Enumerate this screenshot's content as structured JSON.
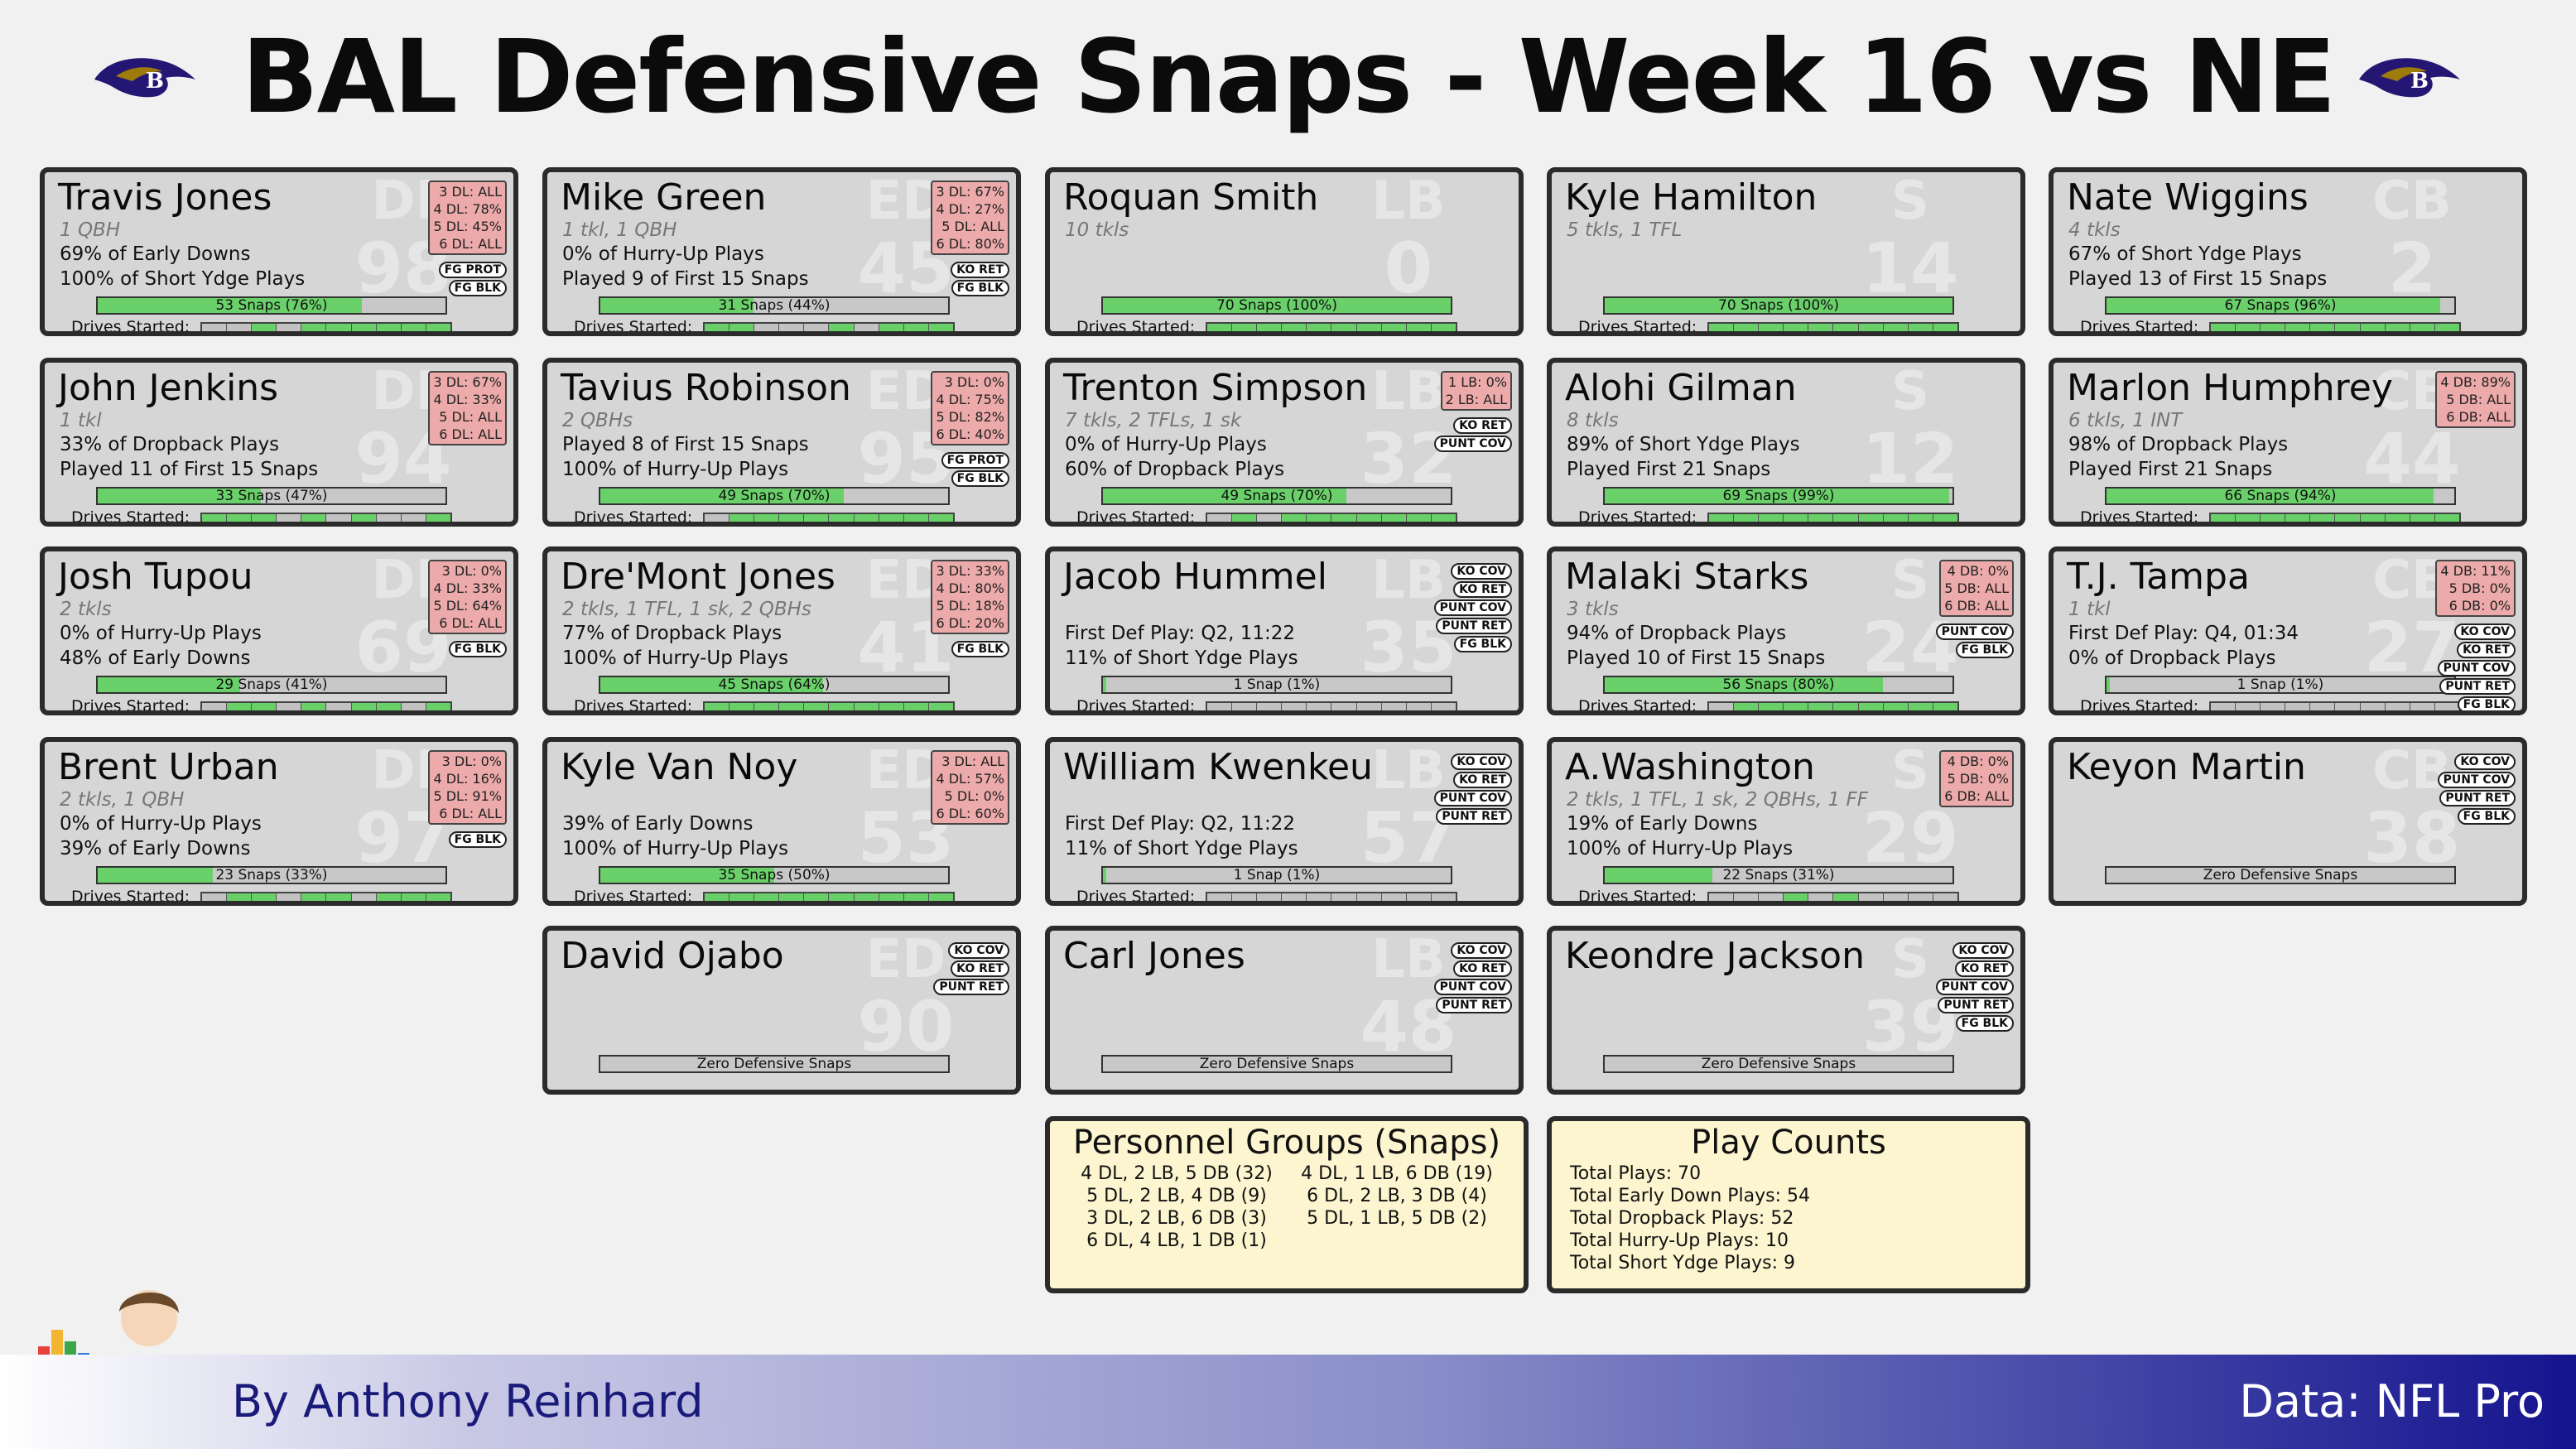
{
  "title": "BAL Defensive Snaps - Week 16 vs NE",
  "footer": {
    "byline": "By Anthony Reinhard",
    "source": "Data: NFL Pro"
  },
  "colors": {
    "card_bg": "#d6d6d6",
    "snap_fill": "#6ad16a",
    "personnel_bg": "#ecaaaa",
    "info_bg": "#fcf5cf",
    "footer_dark": "#15148f"
  },
  "players": [
    {
      "name": "Travis Jones",
      "pos": "DI",
      "num": "98",
      "stat": "1 QBH",
      "notes": [
        "69% of Early Downs",
        "100% of Short Ydge Plays"
      ],
      "snaps": "53 Snaps (76%)",
      "snap_pct": 76,
      "drives": [
        0,
        0,
        1,
        0,
        1,
        1,
        1,
        1,
        1,
        1
      ],
      "personnel": [
        "3 DL: ALL",
        "4 DL: 78%",
        "5 DL: 45%",
        "6 DL: ALL"
      ],
      "tags": [
        "FG PROT",
        "FG BLK"
      ]
    },
    {
      "name": "Mike Green",
      "pos": "ED",
      "num": "45",
      "stat": "1 tkl, 1 QBH",
      "notes": [
        "0% of Hurry-Up Plays",
        "Played 9 of First 15 Snaps"
      ],
      "snaps": "31 Snaps (44%)",
      "snap_pct": 44,
      "drives": [
        1,
        1,
        0,
        0,
        0,
        1,
        0,
        1,
        1,
        1
      ],
      "personnel": [
        "3 DL: 67%",
        "4 DL: 27%",
        "5 DL: ALL",
        "6 DL: 80%"
      ],
      "tags": [
        "KO RET",
        "FG BLK"
      ]
    },
    {
      "name": "Roquan Smith",
      "pos": "LB",
      "num": "0",
      "stat": "10 tkls",
      "notes": [
        "",
        ""
      ],
      "snaps": "70 Snaps (100%)",
      "snap_pct": 100,
      "drives": [
        1,
        1,
        1,
        1,
        1,
        1,
        1,
        1,
        1,
        1
      ],
      "personnel": [],
      "tags": []
    },
    {
      "name": "Kyle Hamilton",
      "pos": "S",
      "num": "14",
      "stat": "5 tkls, 1 TFL",
      "notes": [
        "",
        ""
      ],
      "snaps": "70 Snaps (100%)",
      "snap_pct": 100,
      "drives": [
        1,
        1,
        1,
        1,
        1,
        1,
        1,
        1,
        1,
        1
      ],
      "personnel": [],
      "tags": []
    },
    {
      "name": "Nate Wiggins",
      "pos": "CB",
      "num": "2",
      "stat": "4 tkls",
      "notes": [
        "67% of Short Ydge Plays",
        "Played 13 of First 15 Snaps"
      ],
      "snaps": "67 Snaps (96%)",
      "snap_pct": 96,
      "drives": [
        1,
        1,
        1,
        1,
        1,
        1,
        1,
        1,
        1,
        1
      ],
      "personnel": [],
      "tags": []
    },
    {
      "name": "John Jenkins",
      "pos": "DI",
      "num": "94",
      "stat": "1 tkl",
      "notes": [
        "33% of Dropback Plays",
        "Played 11 of First 15 Snaps"
      ],
      "snaps": "33 Snaps (47%)",
      "snap_pct": 47,
      "drives": [
        1,
        1,
        1,
        0,
        1,
        0,
        1,
        0,
        0,
        1
      ],
      "personnel": [
        "3 DL: 67%",
        "4 DL: 33%",
        "5 DL: ALL",
        "6 DL: ALL"
      ],
      "tags": []
    },
    {
      "name": "Tavius Robinson",
      "pos": "ED",
      "num": "95",
      "stat": "2 QBHs",
      "notes": [
        "Played 8 of First 15 Snaps",
        "100% of Hurry-Up Plays"
      ],
      "snaps": "49 Snaps (70%)",
      "snap_pct": 70,
      "drives": [
        0,
        1,
        1,
        1,
        1,
        1,
        1,
        1,
        1,
        1
      ],
      "personnel": [
        "3 DL: 0%",
        "4 DL: 75%",
        "5 DL: 82%",
        "6 DL: 40%"
      ],
      "tags": [
        "FG PROT",
        "FG BLK"
      ]
    },
    {
      "name": "Trenton Simpson",
      "pos": "LB",
      "num": "32",
      "stat": "7 tkls, 2 TFLs, 1 sk",
      "notes": [
        "0% of Hurry-Up Plays",
        "60% of Dropback Plays"
      ],
      "snaps": "49 Snaps (70%)",
      "snap_pct": 70,
      "drives": [
        0,
        1,
        0,
        1,
        1,
        1,
        1,
        1,
        1,
        1
      ],
      "personnel": [
        "1 LB: 0%",
        "2 LB: ALL"
      ],
      "tags": [
        "KO RET",
        "PUNT COV"
      ]
    },
    {
      "name": "Alohi Gilman",
      "pos": "S",
      "num": "12",
      "stat": "8 tkls",
      "notes": [
        "89% of Short Ydge Plays",
        "Played First 21 Snaps"
      ],
      "snaps": "69 Snaps (99%)",
      "snap_pct": 99,
      "drives": [
        1,
        1,
        1,
        1,
        1,
        1,
        1,
        1,
        1,
        1
      ],
      "personnel": [],
      "tags": []
    },
    {
      "name": "Marlon Humphrey",
      "pos": "CB",
      "num": "44",
      "stat": "6 tkls, 1 INT",
      "notes": [
        "98% of Dropback Plays",
        "Played First 21 Snaps"
      ],
      "snaps": "66 Snaps (94%)",
      "snap_pct": 94,
      "drives": [
        1,
        1,
        1,
        1,
        1,
        1,
        1,
        1,
        1,
        1
      ],
      "personnel": [
        "4 DB: 89%",
        "5 DB: ALL",
        "6 DB: ALL"
      ],
      "tags": []
    },
    {
      "name": "Josh Tupou",
      "pos": "DI",
      "num": "69",
      "stat": "2 tkls",
      "notes": [
        "0% of Hurry-Up Plays",
        "48% of Early Downs"
      ],
      "snaps": "29 Snaps (41%)",
      "snap_pct": 41,
      "drives": [
        0,
        1,
        1,
        0,
        1,
        0,
        1,
        1,
        0,
        1
      ],
      "personnel": [
        "3 DL: 0%",
        "4 DL: 33%",
        "5 DL: 64%",
        "6 DL: ALL"
      ],
      "tags": [
        "FG BLK"
      ]
    },
    {
      "name": "Dre'Mont Jones",
      "pos": "ED",
      "num": "41",
      "stat": "2 tkls, 1 TFL, 1 sk, 2 QBHs",
      "notes": [
        "77% of Dropback Plays",
        "100% of Hurry-Up Plays"
      ],
      "snaps": "45 Snaps (64%)",
      "snap_pct": 64,
      "drives": [
        1,
        1,
        1,
        1,
        1,
        1,
        1,
        1,
        1,
        1
      ],
      "personnel": [
        "3 DL: 33%",
        "4 DL: 80%",
        "5 DL: 18%",
        "6 DL: 20%"
      ],
      "tags": [
        "FG BLK"
      ]
    },
    {
      "name": "Jacob Hummel",
      "pos": "LB",
      "num": "35",
      "stat": "",
      "notes": [
        "First Def Play: Q2, 11:22",
        "11% of Short Ydge Plays"
      ],
      "snaps": "1 Snap (1%)",
      "snap_pct": 1,
      "drives": [
        0,
        0,
        0,
        0,
        0,
        0,
        0,
        0,
        0,
        0
      ],
      "personnel": [],
      "tags": [
        "KO COV",
        "KO RET",
        "PUNT COV",
        "PUNT RET",
        "FG BLK"
      ]
    },
    {
      "name": "Malaki Starks",
      "pos": "S",
      "num": "24",
      "stat": "3 tkls",
      "notes": [
        "94% of Dropback Plays",
        "Played 10 of First 15 Snaps"
      ],
      "snaps": "56 Snaps (80%)",
      "snap_pct": 80,
      "drives": [
        0,
        1,
        1,
        1,
        1,
        1,
        1,
        1,
        1,
        1
      ],
      "personnel": [
        "4 DB: 0%",
        "5 DB: ALL",
        "6 DB: ALL"
      ],
      "tags": [
        "PUNT COV",
        "FG BLK"
      ]
    },
    {
      "name": "T.J. Tampa",
      "pos": "CB",
      "num": "27",
      "stat": "1 tkl",
      "notes": [
        "First Def Play: Q4, 01:34",
        "0% of Dropback Plays"
      ],
      "snaps": "1 Snap (1%)",
      "snap_pct": 1,
      "drives": [
        0,
        0,
        0,
        0,
        0,
        0,
        0,
        0,
        0,
        0
      ],
      "personnel": [
        "4 DB: 11%",
        "5 DB: 0%",
        "6 DB: 0%"
      ],
      "tags": [
        "KO COV",
        "KO RET",
        "PUNT COV",
        "PUNT RET",
        "FG BLK"
      ]
    },
    {
      "name": "Brent Urban",
      "pos": "DI",
      "num": "97",
      "stat": "2 tkls, 1 QBH",
      "notes": [
        "0% of Hurry-Up Plays",
        "39% of Early Downs"
      ],
      "snaps": "23 Snaps (33%)",
      "snap_pct": 33,
      "drives": [
        0,
        1,
        1,
        0,
        1,
        1,
        0,
        1,
        1,
        1
      ],
      "personnel": [
        "3 DL: 0%",
        "4 DL: 16%",
        "5 DL: 91%",
        "6 DL: ALL"
      ],
      "tags": [
        "FG BLK"
      ]
    },
    {
      "name": "Kyle Van Noy",
      "pos": "ED",
      "num": "53",
      "stat": "",
      "notes": [
        "39% of Early Downs",
        "100% of Hurry-Up Plays"
      ],
      "snaps": "35 Snaps (50%)",
      "snap_pct": 50,
      "drives": [
        1,
        1,
        1,
        1,
        1,
        1,
        1,
        1,
        1,
        1
      ],
      "personnel": [
        "3 DL: ALL",
        "4 DL: 57%",
        "5 DL: 0%",
        "6 DL: 60%"
      ],
      "tags": []
    },
    {
      "name": "William Kwenkeu",
      "pos": "LB",
      "num": "57",
      "stat": "",
      "notes": [
        "First Def Play: Q2, 11:22",
        "11% of Short Ydge Plays"
      ],
      "snaps": "1 Snap (1%)",
      "snap_pct": 1,
      "drives": [
        0,
        0,
        0,
        0,
        0,
        0,
        0,
        0,
        0,
        0
      ],
      "personnel": [],
      "tags": [
        "KO COV",
        "KO RET",
        "PUNT COV",
        "PUNT RET"
      ]
    },
    {
      "name": "A.Washington",
      "pos": "S",
      "num": "29",
      "stat": "2 tkls, 1 TFL, 1 sk, 2 QBHs, 1 FF",
      "notes": [
        "19% of Early Downs",
        "100% of Hurry-Up Plays"
      ],
      "snaps": "22 Snaps (31%)",
      "snap_pct": 31,
      "drives": [
        0,
        0,
        0,
        1,
        0,
        1,
        0,
        0,
        0,
        0
      ],
      "personnel": [
        "4 DB: 0%",
        "5 DB: 0%",
        "6 DB: ALL"
      ],
      "tags": []
    },
    {
      "name": "Keyon Martin",
      "pos": "CB",
      "num": "38",
      "stat": "",
      "notes": [
        "",
        ""
      ],
      "zero": "Zero Defensive Snaps",
      "personnel": [],
      "tags": [
        "KO COV",
        "PUNT COV",
        "PUNT RET",
        "FG BLK"
      ]
    },
    {
      "name": "David Ojabo",
      "pos": "ED",
      "num": "90",
      "stat": "",
      "notes": [
        "",
        ""
      ],
      "zero": "Zero Defensive Snaps",
      "personnel": [],
      "tags": [
        "KO COV",
        "KO RET",
        "PUNT RET"
      ]
    },
    {
      "name": "Carl Jones",
      "pos": "LB",
      "num": "48",
      "stat": "",
      "notes": [
        "",
        ""
      ],
      "zero": "Zero Defensive Snaps",
      "personnel": [],
      "tags": [
        "KO COV",
        "KO RET",
        "PUNT COV",
        "PUNT RET"
      ]
    },
    {
      "name": "Keondre Jackson",
      "pos": "S",
      "num": "39",
      "stat": "",
      "notes": [
        "",
        ""
      ],
      "zero": "Zero Defensive Snaps",
      "personnel": [],
      "tags": [
        "KO COV",
        "KO RET",
        "PUNT COV",
        "PUNT RET",
        "FG BLK"
      ]
    }
  ],
  "drives_label": "Drives Started:",
  "personnel_groups": {
    "title": "Personnel Groups (Snaps)",
    "items": [
      "4 DL, 2 LB, 5 DB (32)",
      "4 DL, 1 LB, 6 DB (19)",
      "5 DL, 2 LB, 4 DB (9)",
      "6 DL, 2 LB, 3 DB (4)",
      "3 DL, 2 LB, 6 DB (3)",
      "5 DL, 1 LB, 5 DB (2)",
      "6 DL, 4 LB, 1 DB (1)"
    ]
  },
  "play_counts": {
    "title": "Play Counts",
    "items": [
      "Total Plays: 70",
      "Total Early Down Plays: 54",
      "Total Dropback Plays: 52",
      "Total Hurry-Up Plays: 10",
      "Total Short Ydge Plays: 9"
    ]
  }
}
